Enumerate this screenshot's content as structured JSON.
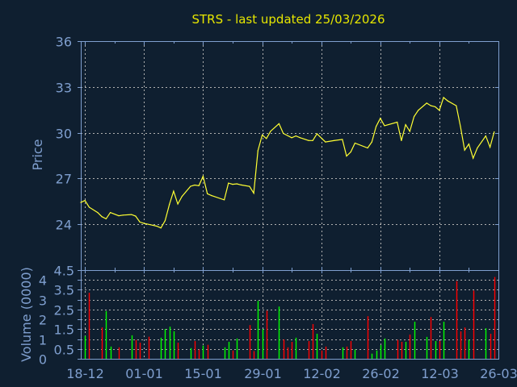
{
  "colors": {
    "background": "#0f1f30",
    "axis": "#7f9fcf",
    "grid": "#b0b0b0",
    "price_line": "#ffff33",
    "volume_up": "#00ff00",
    "volume_down": "#ff0000",
    "title": "#e6e600"
  },
  "chart_data": [
    {
      "type": "line",
      "title": "STRS - last updated 25/03/2026",
      "xlabel": "",
      "ylabel": "Price",
      "ylim": [
        21,
        36
      ],
      "yticks": [
        "36",
        "33",
        "30",
        "27",
        "24"
      ],
      "xlim": [
        "2025-12-17",
        "2026-03-26"
      ],
      "grid": true,
      "x": [
        "2025-12-17",
        "2025-12-18",
        "2025-12-19",
        "2025-12-21",
        "2025-12-22",
        "2025-12-23",
        "2025-12-24",
        "2025-12-26",
        "2025-12-27",
        "2025-12-29",
        "2025-12-30",
        "2025-12-31",
        "2026-01-01",
        "2026-01-03",
        "2026-01-04",
        "2026-01-05",
        "2026-01-06",
        "2026-01-07",
        "2026-01-08",
        "2026-01-09",
        "2026-01-10",
        "2026-01-12",
        "2026-01-13",
        "2026-01-14",
        "2026-01-15",
        "2026-01-16",
        "2026-01-17",
        "2026-01-20",
        "2026-01-21",
        "2026-01-22",
        "2026-01-23",
        "2026-01-24",
        "2026-01-26",
        "2026-01-27",
        "2026-01-28",
        "2026-01-29",
        "2026-01-30",
        "2026-01-31",
        "2026-02-02",
        "2026-02-03",
        "2026-02-05",
        "2026-02-06",
        "2026-02-07",
        "2026-02-09",
        "2026-02-10",
        "2026-02-11",
        "2026-02-13",
        "2026-02-15",
        "2026-02-17",
        "2026-02-18",
        "2026-02-19",
        "2026-02-20",
        "2026-02-23",
        "2026-02-24",
        "2026-02-25",
        "2026-02-26",
        "2026-02-27",
        "2026-03-02",
        "2026-03-03",
        "2026-03-04",
        "2026-03-05",
        "2026-03-06",
        "2026-03-07",
        "2026-03-09",
        "2026-03-10",
        "2026-03-11",
        "2026-03-12",
        "2026-03-13",
        "2026-03-14",
        "2026-03-16",
        "2026-03-17",
        "2026-03-18",
        "2026-03-19",
        "2026-03-20",
        "2026-03-21",
        "2026-03-23",
        "2026-03-24",
        "2026-03-25"
      ],
      "y": [
        25.43,
        25.56,
        25.12,
        24.77,
        24.5,
        24.36,
        24.77,
        24.56,
        24.6,
        24.64,
        24.54,
        24.15,
        24.06,
        23.94,
        23.88,
        23.76,
        24.24,
        25.3,
        26.17,
        25.33,
        25.83,
        26.49,
        26.57,
        26.53,
        27.15,
        26.0,
        25.88,
        25.6,
        26.7,
        26.62,
        26.65,
        26.58,
        26.48,
        26.04,
        28.82,
        29.85,
        29.62,
        30.1,
        30.59,
        29.95,
        29.67,
        29.79,
        29.67,
        29.49,
        29.49,
        29.93,
        29.39,
        29.48,
        29.56,
        28.47,
        28.74,
        29.32,
        29.0,
        29.39,
        30.41,
        30.94,
        30.46,
        30.69,
        29.48,
        30.53,
        30.09,
        31.06,
        31.47,
        31.94,
        31.77,
        31.7,
        31.47,
        32.31,
        32.08,
        31.77,
        30.41,
        28.86,
        29.26,
        28.33,
        29.0,
        29.79,
        29.05,
        30.06
      ]
    },
    {
      "type": "bar",
      "xlabel": "",
      "ylabel": "Volume (0000)",
      "ylim": [
        0,
        4.5
      ],
      "yticks": [
        "0",
        "0.5",
        "1",
        "1.5",
        "2",
        "2.5",
        "3",
        "3.5",
        "4",
        "4.5"
      ],
      "xticks": [
        "18-12",
        "01-01",
        "15-01",
        "29-01",
        "12-02",
        "26-02",
        "12-03",
        "26-03"
      ],
      "xtick_dates": [
        "2025-12-18",
        "2026-01-01",
        "2026-01-15",
        "2026-01-29",
        "2026-02-12",
        "2026-02-26",
        "2026-03-12",
        "2026-03-26"
      ],
      "grid": true,
      "x": [
        "2025-12-18",
        "2025-12-19",
        "2025-12-22",
        "2025-12-23",
        "2025-12-24",
        "2025-12-26",
        "2025-12-29",
        "2025-12-30",
        "2025-12-31",
        "2026-01-02",
        "2026-01-05",
        "2026-01-06",
        "2026-01-07",
        "2026-01-08",
        "2026-01-09",
        "2026-01-12",
        "2026-01-13",
        "2026-01-14",
        "2026-01-15",
        "2026-01-16",
        "2026-01-20",
        "2026-01-21",
        "2026-01-22",
        "2026-01-23",
        "2026-01-26",
        "2026-01-27",
        "2026-01-28",
        "2026-01-29",
        "2026-01-30",
        "2026-02-02",
        "2026-02-03",
        "2026-02-04",
        "2026-02-05",
        "2026-02-06",
        "2026-02-09",
        "2026-02-10",
        "2026-02-11",
        "2026-02-12",
        "2026-02-13",
        "2026-02-17",
        "2026-02-18",
        "2026-02-19",
        "2026-02-20",
        "2026-02-23",
        "2026-02-24",
        "2026-02-25",
        "2026-02-26",
        "2026-02-27",
        "2026-03-02",
        "2026-03-03",
        "2026-03-04",
        "2026-03-05",
        "2026-03-06",
        "2026-03-09",
        "2026-03-10",
        "2026-03-11",
        "2026-03-12",
        "2026-03-13",
        "2026-03-16",
        "2026-03-17",
        "2026-03-18",
        "2026-03-19",
        "2026-03-20",
        "2026-03-23",
        "2026-03-24",
        "2026-03-25"
      ],
      "values": [
        1.16,
        3.35,
        1.59,
        2.42,
        0.62,
        0.58,
        1.19,
        0.96,
        0.82,
        1.12,
        1.07,
        1.51,
        1.63,
        1.4,
        0.82,
        0.54,
        0.9,
        0.47,
        0.67,
        0.71,
        0.58,
        0.86,
        0.42,
        1.03,
        1.71,
        0.39,
        2.94,
        1.5,
        2.44,
        2.65,
        0.98,
        0.58,
        0.86,
        1.07,
        0.9,
        1.76,
        1.27,
        0.42,
        0.62,
        0.58,
        0.62,
        0.9,
        0.47,
        2.16,
        0.26,
        0.42,
        0.7,
        1.03,
        0.96,
        0.86,
        0.86,
        1.23,
        1.88,
        1.11,
        2.12,
        0.9,
        0.9,
        1.88,
        3.94,
        1.39,
        1.59,
        0.96,
        3.46,
        1.55,
        1.27,
        4.15
      ],
      "direction": [
        "up",
        "down",
        "down",
        "up",
        "up",
        "down",
        "up",
        "down",
        "down",
        "down",
        "up",
        "up",
        "up",
        "up",
        "down",
        "up",
        "down",
        "down",
        "up",
        "down",
        "up",
        "up",
        "down",
        "up",
        "down",
        "down",
        "up",
        "up",
        "down",
        "up",
        "down",
        "down",
        "down",
        "up",
        "down",
        "down",
        "up",
        "down",
        "down",
        "up",
        "down",
        "down",
        "up",
        "down",
        "up",
        "up",
        "up",
        "up",
        "down",
        "down",
        "up",
        "down",
        "up",
        "up",
        "down",
        "up",
        "down",
        "up",
        "down",
        "down",
        "down",
        "up",
        "down",
        "up",
        "down",
        "down"
      ]
    }
  ]
}
